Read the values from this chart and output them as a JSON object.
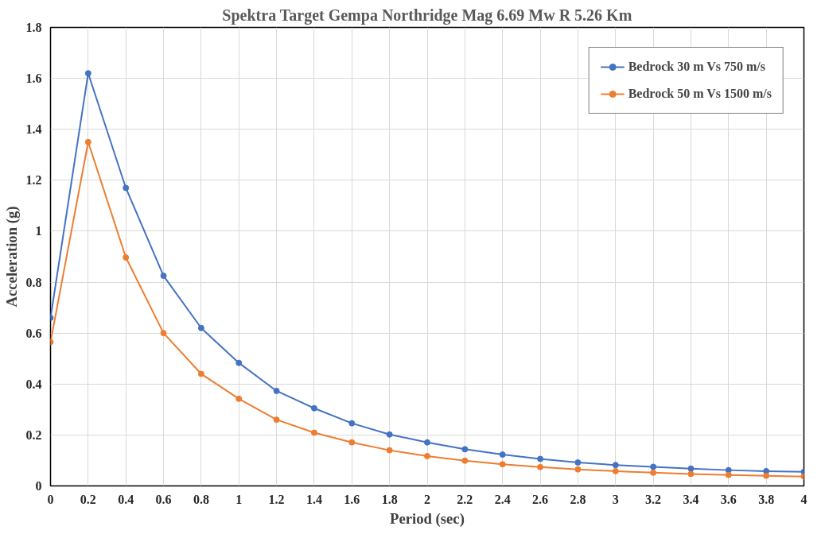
{
  "chart_data": {
    "type": "line",
    "title": "Spektra Target Gempa Northridge Mag 6.69 Mw R 5.26 Km",
    "xlabel": "Period (sec)",
    "ylabel": "Acceleration (g)",
    "x": [
      0,
      0.2,
      0.4,
      0.6,
      0.8,
      1.0,
      1.2,
      1.4,
      1.6,
      1.8,
      2.0,
      2.2,
      2.4,
      2.6,
      2.8,
      3.0,
      3.2,
      3.4,
      3.6,
      3.8,
      4.0
    ],
    "series": [
      {
        "name": "Bedrock 30 m Vs 750 m/s",
        "color": "#4472c4",
        "values": [
          0.66,
          1.62,
          1.17,
          0.825,
          0.62,
          0.483,
          0.373,
          0.305,
          0.246,
          0.202,
          0.171,
          0.144,
          0.123,
          0.106,
          0.092,
          0.082,
          0.075,
          0.068,
          0.062,
          0.058,
          0.055
        ]
      },
      {
        "name": "Bedrock 50 m Vs 1500 m/s",
        "color": "#ed7d31",
        "values": [
          0.565,
          1.35,
          0.897,
          0.6,
          0.44,
          0.342,
          0.26,
          0.209,
          0.171,
          0.14,
          0.117,
          0.099,
          0.085,
          0.074,
          0.065,
          0.058,
          0.052,
          0.047,
          0.043,
          0.04,
          0.037
        ]
      }
    ],
    "xlim": [
      0,
      4
    ],
    "ylim": [
      0,
      1.8
    ],
    "xticks": [
      0,
      0.2,
      0.4,
      0.6,
      0.8,
      1,
      1.2,
      1.4,
      1.6,
      1.8,
      2,
      2.2,
      2.4,
      2.6,
      2.8,
      3,
      3.2,
      3.4,
      3.6,
      3.8,
      4
    ],
    "yticks": [
      0,
      0.2,
      0.4,
      0.6,
      0.8,
      1,
      1.2,
      1.4,
      1.6,
      1.8
    ],
    "grid": true,
    "legend": "top right",
    "marker": "circle",
    "line_style": "solid"
  }
}
